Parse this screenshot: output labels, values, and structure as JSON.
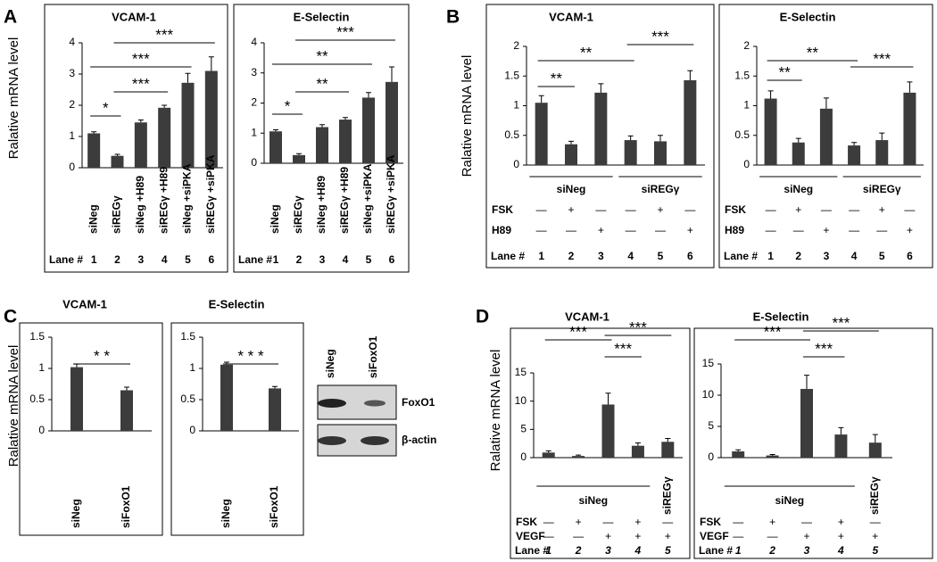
{
  "chart_data": [
    {
      "type": "bar",
      "panel": "A",
      "ylabel": "Ralative mRNA level",
      "title": "VCAM-1",
      "categories": [
        "siNeg",
        "siREGγ",
        "siNeg +H89",
        "siREGγ +H89",
        "siNeg +siPKA",
        "siREGγ +siPKA"
      ],
      "values": [
        1.1,
        0.38,
        1.45,
        1.92,
        2.72,
        3.1
      ],
      "errors": [
        0.05,
        0.05,
        0.08,
        0.08,
        0.3,
        0.45
      ],
      "color": "#3c3c3c",
      "ylim": [
        0,
        4
      ],
      "yticks": [
        0,
        1,
        2,
        3,
        4
      ],
      "annotations": [
        "*",
        "***",
        "***",
        "***"
      ],
      "lane_label": "Lane #",
      "lanes": [
        1,
        2,
        3,
        4,
        5,
        6
      ]
    },
    {
      "type": "bar",
      "title": "E-Selectin",
      "categories": [
        "siNeg",
        "siREGγ",
        "siNeg +H89",
        "siREGγ +H89",
        "siNeg +siPKA",
        "siREGγ +siPKA"
      ],
      "values": [
        1.06,
        0.27,
        1.2,
        1.45,
        2.18,
        2.7
      ],
      "errors": [
        0.05,
        0.05,
        0.08,
        0.07,
        0.17,
        0.5
      ],
      "color": "#3c3c3c",
      "ylim": [
        0,
        4
      ],
      "yticks": [
        0,
        1,
        2,
        3,
        4
      ],
      "annotations": [
        "*",
        "**",
        "**",
        "***"
      ],
      "lane_label": "Lane #",
      "lanes": [
        1,
        2,
        3,
        4,
        5,
        6
      ]
    },
    {
      "type": "bar",
      "panel": "B",
      "ylabel": "Ralative mRNA level",
      "title": "VCAM-1",
      "values": [
        1.05,
        0.35,
        1.22,
        0.42,
        0.4,
        1.43
      ],
      "errors": [
        0.12,
        0.05,
        0.15,
        0.07,
        0.1,
        0.16
      ],
      "color": "#3c3c3c",
      "ylim": [
        0,
        2
      ],
      "yticks": [
        0,
        0.5,
        1,
        1.5,
        2
      ],
      "annotations": [
        "**",
        "**",
        "***"
      ],
      "groups": [
        "siNeg",
        "siREGγ"
      ],
      "conditions": [
        {
          "name": "FSK",
          "values": [
            "—",
            "+",
            "—",
            "—",
            "+",
            "—"
          ]
        },
        {
          "name": "H89",
          "values": [
            "—",
            "—",
            "+",
            "—",
            "—",
            "+"
          ]
        }
      ],
      "lane_label": "Lane #",
      "lanes": [
        1,
        2,
        3,
        4,
        5,
        6
      ]
    },
    {
      "type": "bar",
      "title": "E-Selectin",
      "values": [
        1.12,
        0.38,
        0.95,
        0.33,
        0.42,
        1.22
      ],
      "errors": [
        0.13,
        0.07,
        0.18,
        0.05,
        0.12,
        0.18
      ],
      "color": "#3c3c3c",
      "ylim": [
        0,
        2
      ],
      "yticks": [
        0,
        0.5,
        1,
        1.5,
        2
      ],
      "annotations": [
        "**",
        "**",
        "***"
      ],
      "groups": [
        "siNeg",
        "siREGγ"
      ],
      "conditions": [
        {
          "name": "FSK",
          "values": [
            "—",
            "+",
            "—",
            "—",
            "+",
            "—"
          ]
        },
        {
          "name": "H89",
          "values": [
            "—",
            "—",
            "+",
            "—",
            "—",
            "+"
          ]
        }
      ],
      "lane_label": "Lane #",
      "lanes": [
        1,
        2,
        3,
        4,
        5,
        6
      ]
    },
    {
      "type": "bar",
      "panel": "C",
      "ylabel": "Ralative mRNA level",
      "title": "VCAM-1",
      "categories": [
        "siNeg",
        "siFoxO1"
      ],
      "values": [
        1.02,
        0.65
      ],
      "errors": [
        0.05,
        0.05
      ],
      "color": "#3c3c3c",
      "ylim": [
        0,
        1.5
      ],
      "yticks": [
        0,
        0.5,
        1,
        1.5
      ],
      "annotations": [
        "* *"
      ]
    },
    {
      "type": "bar",
      "title": "E-Selectin",
      "categories": [
        "siNeg",
        "siFoxO1"
      ],
      "values": [
        1.06,
        0.68
      ],
      "errors": [
        0.04,
        0.03
      ],
      "color": "#3c3c3c",
      "ylim": [
        0,
        1.5
      ],
      "yticks": [
        0,
        0.5,
        1,
        1.5
      ],
      "annotations": [
        "* * *"
      ]
    },
    {
      "type": "bar",
      "panel": "D",
      "ylabel": "Ralative mRNA level",
      "title": "VCAM-1",
      "values": [
        0.9,
        0.3,
        9.4,
        2.1,
        2.8
      ],
      "errors": [
        0.3,
        0.15,
        2,
        0.5,
        0.6
      ],
      "color": "#3c3c3c",
      "ylim": [
        0,
        15
      ],
      "yticks": [
        0,
        5,
        10,
        15
      ],
      "annotations": [
        "***",
        "***",
        "***"
      ],
      "groups": [
        "siNeg",
        "siREGγ"
      ],
      "conditions": [
        {
          "name": "FSK",
          "values": [
            "—",
            "+",
            "—",
            "+",
            "—"
          ]
        },
        {
          "name": "VEGF",
          "values": [
            "—",
            "—",
            "+",
            "+",
            "+"
          ]
        }
      ],
      "lane_label": "Lane #",
      "lanes": [
        1,
        2,
        3,
        4,
        5
      ]
    },
    {
      "type": "bar",
      "title": "E-Selectin",
      "values": [
        1,
        0.35,
        11,
        3.7,
        2.4
      ],
      "errors": [
        0.25,
        0.15,
        2.2,
        1.1,
        1.3
      ],
      "color": "#3c3c3c",
      "ylim": [
        0,
        15
      ],
      "yticks": [
        0,
        5,
        10,
        15
      ],
      "annotations": [
        "***",
        "***",
        "***"
      ],
      "groups": [
        "siNeg",
        "siREGγ"
      ],
      "conditions": [
        {
          "name": "FSK",
          "values": [
            "—",
            "+",
            "—",
            "+",
            "—"
          ]
        },
        {
          "name": "VEGF",
          "values": [
            "—",
            "—",
            "+",
            "+",
            "+"
          ]
        }
      ],
      "lane_label": "Lane #",
      "lanes": [
        1,
        2,
        3,
        4,
        5
      ]
    }
  ],
  "blot": {
    "lanes": [
      "siNeg",
      "siFoxO1"
    ],
    "bands": [
      "FoxO1",
      "β-actin"
    ]
  }
}
